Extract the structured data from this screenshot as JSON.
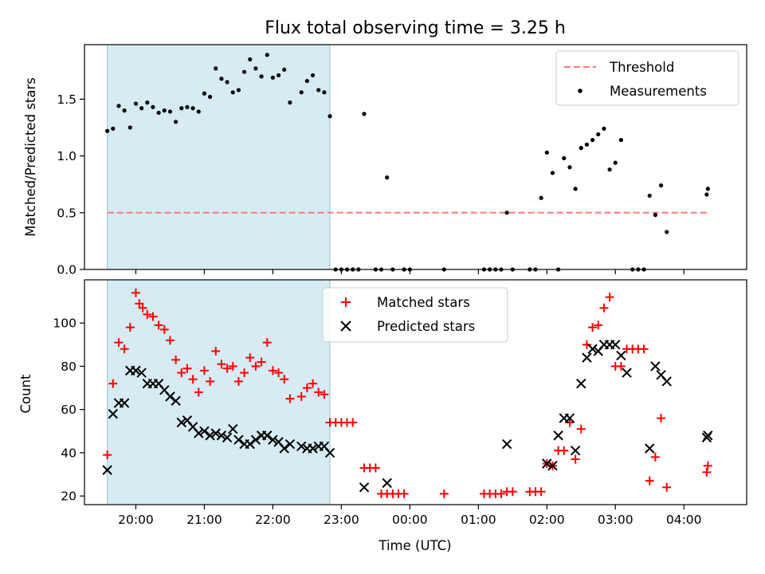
{
  "chart_data": [
    {
      "type": "scatter",
      "title": "Flux total observing time = 3.25 h",
      "xlabel": "",
      "ylabel": "Matched/Predicted stars",
      "ylim": [
        0,
        1.98
      ],
      "yticks": [
        "0.0",
        "0.5",
        "1.0",
        "1.5"
      ],
      "shaded_span": {
        "start": "19:35",
        "end": "22:50"
      },
      "legend_position": "top-right",
      "series": [
        {
          "name": "Threshold",
          "kind": "dashed-line",
          "color": "#ff7a7a",
          "y": 0.5,
          "x_range": [
            "19:35",
            "04:20"
          ]
        },
        {
          "name": "Measurements",
          "kind": "dots",
          "color": "#000000",
          "points": [
            [
              "19:35",
              1.22
            ],
            [
              "19:40",
              1.24
            ],
            [
              "19:45",
              1.44
            ],
            [
              "19:50",
              1.4
            ],
            [
              "19:55",
              1.25
            ],
            [
              "20:00",
              1.46
            ],
            [
              "20:05",
              1.42
            ],
            [
              "20:10",
              1.47
            ],
            [
              "20:15",
              1.43
            ],
            [
              "20:20",
              1.38
            ],
            [
              "20:25",
              1.4
            ],
            [
              "20:30",
              1.39
            ],
            [
              "20:35",
              1.3
            ],
            [
              "20:40",
              1.42
            ],
            [
              "20:45",
              1.43
            ],
            [
              "20:50",
              1.42
            ],
            [
              "20:55",
              1.39
            ],
            [
              "21:00",
              1.55
            ],
            [
              "21:05",
              1.52
            ],
            [
              "21:10",
              1.77
            ],
            [
              "21:15",
              1.68
            ],
            [
              "21:20",
              1.65
            ],
            [
              "21:25",
              1.56
            ],
            [
              "21:30",
              1.58
            ],
            [
              "21:35",
              1.74
            ],
            [
              "21:40",
              1.85
            ],
            [
              "21:45",
              1.77
            ],
            [
              "21:50",
              1.7
            ],
            [
              "21:55",
              1.89
            ],
            [
              "22:00",
              1.69
            ],
            [
              "22:05",
              1.71
            ],
            [
              "22:10",
              1.76
            ],
            [
              "22:15",
              1.47
            ],
            [
              "22:25",
              1.56
            ],
            [
              "22:30",
              1.66
            ],
            [
              "22:35",
              1.71
            ],
            [
              "22:40",
              1.58
            ],
            [
              "22:45",
              1.56
            ],
            [
              "22:50",
              1.35
            ],
            [
              "22:55",
              0.0
            ],
            [
              "23:00",
              0.0
            ],
            [
              "23:05",
              0.0
            ],
            [
              "23:10",
              0.0
            ],
            [
              "23:15",
              0.0
            ],
            [
              "23:20",
              1.37
            ],
            [
              "23:30",
              0.0
            ],
            [
              "23:35",
              0.0
            ],
            [
              "23:40",
              0.81
            ],
            [
              "23:45",
              0.0
            ],
            [
              "23:55",
              0.0
            ],
            [
              "00:00",
              0.0
            ],
            [
              "00:30",
              0.0
            ],
            [
              "01:05",
              0.0
            ],
            [
              "01:10",
              0.0
            ],
            [
              "01:15",
              0.0
            ],
            [
              "01:20",
              0.0
            ],
            [
              "01:25",
              0.5
            ],
            [
              "01:30",
              0.0
            ],
            [
              "01:45",
              0.0
            ],
            [
              "01:50",
              0.0
            ],
            [
              "01:55",
              0.63
            ],
            [
              "02:00",
              1.03
            ],
            [
              "02:05",
              0.85
            ],
            [
              "02:10",
              0.0
            ],
            [
              "02:15",
              0.98
            ],
            [
              "02:20",
              0.9
            ],
            [
              "02:25",
              0.71
            ],
            [
              "02:30",
              1.07
            ],
            [
              "02:35",
              1.1
            ],
            [
              "02:40",
              1.14
            ],
            [
              "02:45",
              1.19
            ],
            [
              "02:50",
              1.24
            ],
            [
              "02:55",
              0.88
            ],
            [
              "03:00",
              0.94
            ],
            [
              "03:05",
              1.14
            ],
            [
              "03:15",
              0.0
            ],
            [
              "03:20",
              0.0
            ],
            [
              "03:25",
              0.0
            ],
            [
              "03:30",
              0.65
            ],
            [
              "03:35",
              0.48
            ],
            [
              "03:40",
              0.74
            ],
            [
              "03:45",
              0.33
            ],
            [
              "04:20",
              0.66
            ],
            [
              "04:21",
              0.71
            ]
          ]
        }
      ]
    },
    {
      "type": "scatter",
      "title": "",
      "xlabel": "Time (UTC)",
      "ylabel": "Count",
      "ylim": [
        16,
        120
      ],
      "yticks": [
        "20",
        "40",
        "60",
        "80",
        "100"
      ],
      "xticks": [
        "20:00",
        "21:00",
        "22:00",
        "23:00",
        "00:00",
        "01:00",
        "02:00",
        "03:00",
        "04:00"
      ],
      "x_range": [
        "19:15",
        "04:55"
      ],
      "shaded_span": {
        "start": "19:35",
        "end": "22:50"
      },
      "legend_position": "top-center",
      "series": [
        {
          "name": "Matched stars",
          "marker": "plus",
          "color": "#ff0000",
          "points": [
            [
              "19:35",
              39
            ],
            [
              "19:40",
              72
            ],
            [
              "19:45",
              91
            ],
            [
              "19:50",
              88
            ],
            [
              "19:55",
              98
            ],
            [
              "20:00",
              114
            ],
            [
              "20:03",
              109
            ],
            [
              "20:06",
              107
            ],
            [
              "20:10",
              104
            ],
            [
              "20:15",
              103
            ],
            [
              "20:20",
              99
            ],
            [
              "20:25",
              97
            ],
            [
              "20:30",
              92
            ],
            [
              "20:35",
              83
            ],
            [
              "20:40",
              77
            ],
            [
              "20:45",
              79
            ],
            [
              "20:50",
              74
            ],
            [
              "20:55",
              68
            ],
            [
              "21:00",
              78
            ],
            [
              "21:05",
              73
            ],
            [
              "21:10",
              87
            ],
            [
              "21:15",
              81
            ],
            [
              "21:20",
              79
            ],
            [
              "21:25",
              80
            ],
            [
              "21:30",
              73
            ],
            [
              "21:35",
              77
            ],
            [
              "21:40",
              84
            ],
            [
              "21:45",
              80
            ],
            [
              "21:50",
              82
            ],
            [
              "21:55",
              91
            ],
            [
              "22:00",
              78
            ],
            [
              "22:05",
              77
            ],
            [
              "22:10",
              74
            ],
            [
              "22:15",
              65
            ],
            [
              "22:25",
              66
            ],
            [
              "22:30",
              70
            ],
            [
              "22:35",
              72
            ],
            [
              "22:40",
              68
            ],
            [
              "22:45",
              67
            ],
            [
              "22:50",
              54
            ],
            [
              "22:55",
              54
            ],
            [
              "23:00",
              54
            ],
            [
              "23:05",
              54
            ],
            [
              "23:10",
              54
            ],
            [
              "23:20",
              33
            ],
            [
              "23:25",
              33
            ],
            [
              "23:30",
              33
            ],
            [
              "23:35",
              21
            ],
            [
              "23:40",
              21
            ],
            [
              "23:45",
              21
            ],
            [
              "23:50",
              21
            ],
            [
              "23:55",
              21
            ],
            [
              "00:30",
              21
            ],
            [
              "01:05",
              21
            ],
            [
              "01:10",
              21
            ],
            [
              "01:15",
              21
            ],
            [
              "01:20",
              21
            ],
            [
              "01:25",
              22
            ],
            [
              "01:30",
              22
            ],
            [
              "01:45",
              22
            ],
            [
              "01:50",
              22
            ],
            [
              "01:55",
              22
            ],
            [
              "02:00",
              35
            ],
            [
              "02:05",
              34
            ],
            [
              "02:10",
              41
            ],
            [
              "02:15",
              41
            ],
            [
              "02:20",
              54
            ],
            [
              "02:25",
              37
            ],
            [
              "02:30",
              51
            ],
            [
              "02:35",
              90
            ],
            [
              "02:40",
              98
            ],
            [
              "02:45",
              99
            ],
            [
              "02:50",
              107
            ],
            [
              "02:55",
              112
            ],
            [
              "03:00",
              80
            ],
            [
              "03:05",
              80
            ],
            [
              "03:10",
              88
            ],
            [
              "03:15",
              88
            ],
            [
              "03:20",
              88
            ],
            [
              "03:25",
              88
            ],
            [
              "03:30",
              27
            ],
            [
              "03:35",
              38
            ],
            [
              "03:40",
              56
            ],
            [
              "03:45",
              24
            ],
            [
              "04:20",
              31
            ],
            [
              "04:21",
              34
            ]
          ]
        },
        {
          "name": "Predicted stars",
          "marker": "x",
          "color": "#000000",
          "points": [
            [
              "19:35",
              32
            ],
            [
              "19:40",
              58
            ],
            [
              "19:45",
              63
            ],
            [
              "19:50",
              63
            ],
            [
              "19:55",
              78
            ],
            [
              "20:00",
              78
            ],
            [
              "20:05",
              77
            ],
            [
              "20:10",
              72
            ],
            [
              "20:15",
              72
            ],
            [
              "20:20",
              72
            ],
            [
              "20:25",
              69
            ],
            [
              "20:30",
              66
            ],
            [
              "20:35",
              64
            ],
            [
              "20:40",
              54
            ],
            [
              "20:45",
              55
            ],
            [
              "20:50",
              52
            ],
            [
              "20:55",
              49
            ],
            [
              "21:00",
              50
            ],
            [
              "21:05",
              48
            ],
            [
              "21:10",
              49
            ],
            [
              "21:15",
              48
            ],
            [
              "21:20",
              47
            ],
            [
              "21:25",
              51
            ],
            [
              "21:30",
              46
            ],
            [
              "21:35",
              44
            ],
            [
              "21:40",
              44
            ],
            [
              "21:45",
              46
            ],
            [
              "21:50",
              48
            ],
            [
              "21:55",
              48
            ],
            [
              "22:00",
              46
            ],
            [
              "22:05",
              45
            ],
            [
              "22:10",
              42
            ],
            [
              "22:15",
              44
            ],
            [
              "22:25",
              43
            ],
            [
              "22:30",
              42
            ],
            [
              "22:35",
              42
            ],
            [
              "22:40",
              43
            ],
            [
              "22:45",
              43
            ],
            [
              "22:50",
              40
            ],
            [
              "23:20",
              24
            ],
            [
              "23:40",
              26
            ],
            [
              "01:25",
              44
            ],
            [
              "02:00",
              35
            ],
            [
              "02:05",
              34
            ],
            [
              "02:10",
              48
            ],
            [
              "02:15",
              56
            ],
            [
              "02:20",
              56
            ],
            [
              "02:25",
              41
            ],
            [
              "02:30",
              72
            ],
            [
              "02:35",
              84
            ],
            [
              "02:40",
              88
            ],
            [
              "02:45",
              87
            ],
            [
              "02:50",
              90
            ],
            [
              "02:55",
              90
            ],
            [
              "03:00",
              90
            ],
            [
              "03:05",
              85
            ],
            [
              "03:10",
              77
            ],
            [
              "03:30",
              42
            ],
            [
              "03:35",
              80
            ],
            [
              "03:40",
              76
            ],
            [
              "03:45",
              73
            ],
            [
              "04:20",
              47
            ],
            [
              "04:21",
              48
            ]
          ]
        }
      ]
    }
  ]
}
